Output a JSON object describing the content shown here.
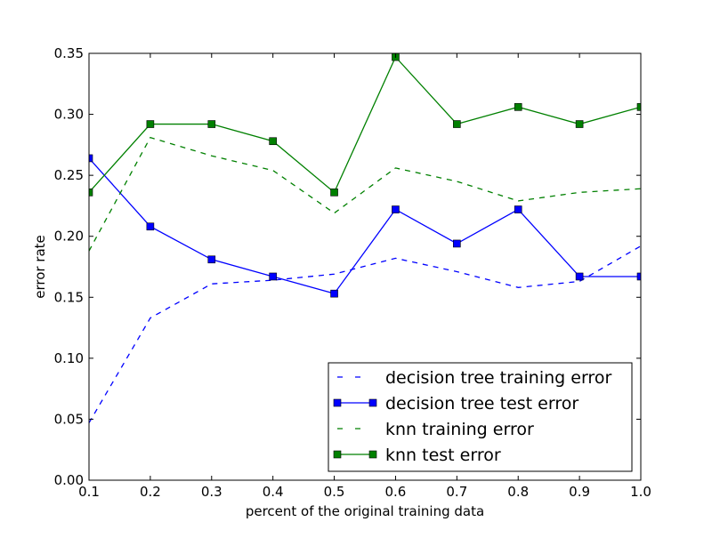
{
  "chart_data": {
    "type": "line",
    "title": "",
    "xlabel": "percent of the original training data",
    "ylabel": "error rate",
    "xlim": [
      0.1,
      1.0
    ],
    "ylim": [
      0.0,
      0.35
    ],
    "x_ticks": [
      0.1,
      0.2,
      0.3,
      0.4,
      0.5,
      0.6,
      0.7,
      0.8,
      0.9,
      1.0
    ],
    "x_tick_labels": [
      "0.1",
      "0.2",
      "0.3",
      "0.4",
      "0.5",
      "0.6",
      "0.7",
      "0.8",
      "0.9",
      "1.0"
    ],
    "y_ticks": [
      0.0,
      0.05,
      0.1,
      0.15,
      0.2,
      0.25,
      0.3,
      0.35
    ],
    "y_tick_labels": [
      "0.00",
      "0.05",
      "0.10",
      "0.15",
      "0.20",
      "0.25",
      "0.30",
      "0.35"
    ],
    "grid": false,
    "legend_position": "bottom-right",
    "x": [
      0.1,
      0.2,
      0.3,
      0.4,
      0.5,
      0.6,
      0.7,
      0.8,
      0.9,
      1.0
    ],
    "series": [
      {
        "name": "decision tree training error",
        "color": "#0000ff",
        "line_style": "dashed",
        "marker": "none",
        "values": [
          0.047,
          0.133,
          0.161,
          0.164,
          0.169,
          0.182,
          0.171,
          0.158,
          0.163,
          0.192
        ]
      },
      {
        "name": "decision tree test error",
        "color": "#0000ff",
        "line_style": "solid",
        "marker": "square",
        "values": [
          0.264,
          0.208,
          0.181,
          0.167,
          0.153,
          0.222,
          0.194,
          0.222,
          0.167,
          0.167
        ]
      },
      {
        "name": "knn training error",
        "color": "#008000",
        "line_style": "dashed",
        "marker": "none",
        "values": [
          0.188,
          0.281,
          0.266,
          0.254,
          0.219,
          0.256,
          0.245,
          0.229,
          0.236,
          0.239
        ]
      },
      {
        "name": "knn test error",
        "color": "#008000",
        "line_style": "solid",
        "marker": "square",
        "values": [
          0.236,
          0.292,
          0.292,
          0.278,
          0.236,
          0.347,
          0.292,
          0.306,
          0.292,
          0.306
        ]
      }
    ]
  }
}
